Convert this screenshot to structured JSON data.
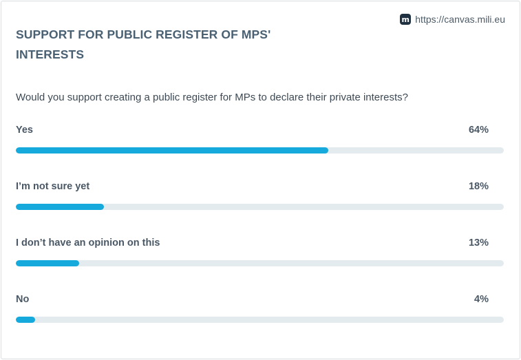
{
  "source": {
    "logo_text": "m",
    "url": "https://canvas.mili.eu"
  },
  "title": "SUPPORT FOR PUBLIC REGISTER OF MPS' INTERESTS",
  "question": "Would you support creating a public register for MPs to declare their private interests?",
  "colors": {
    "bar_fill": "#16a9dc",
    "bar_track": "#e3ebee",
    "title": "#4a6174"
  },
  "chart_data": {
    "type": "bar",
    "orientation": "horizontal",
    "title": "SUPPORT FOR PUBLIC REGISTER OF MPS' INTERESTS",
    "categories": [
      "Yes",
      "I’m not sure yet",
      "I don’t have an opinion on this",
      "No"
    ],
    "values": [
      64,
      18,
      13,
      4
    ],
    "value_labels": [
      "64%",
      "18%",
      "13%",
      "4%"
    ],
    "xlim": [
      0,
      100
    ],
    "grid": false
  }
}
